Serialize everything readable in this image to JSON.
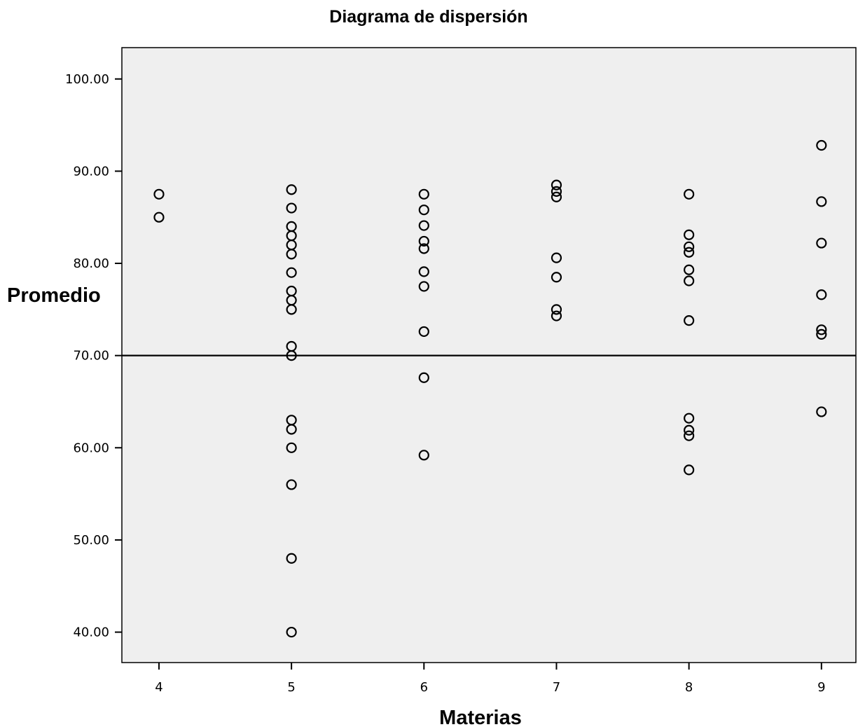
{
  "chart_data": {
    "type": "scatter",
    "title": "Diagrama de dispersión",
    "xlabel": "Materias",
    "ylabel": "Promedio",
    "xlim": [
      3.72,
      9.26
    ],
    "ylim": [
      36.7,
      103.4
    ],
    "x_ticks": [
      4,
      5,
      6,
      7,
      8,
      9
    ],
    "x_tick_labels": [
      "4",
      "5",
      "6",
      "7",
      "8",
      "9"
    ],
    "y_ticks": [
      40,
      50,
      60,
      70,
      80,
      90,
      100
    ],
    "y_tick_labels": [
      "40.00",
      "50.00",
      "60.00",
      "70.00",
      "80.00",
      "90.00",
      "100.00"
    ],
    "reference_line": {
      "orientation": "horizontal",
      "y": 70
    },
    "grid": false,
    "colors": {
      "plot_background": "#efefef",
      "marker": "#000000",
      "reference_line": "#000000"
    },
    "series": [
      {
        "marker": "open-circle",
        "points": [
          {
            "x": 4,
            "y": 87.5
          },
          {
            "x": 4,
            "y": 85.0
          },
          {
            "x": 5,
            "y": 88.0
          },
          {
            "x": 5,
            "y": 86.0
          },
          {
            "x": 5,
            "y": 84.0
          },
          {
            "x": 5,
            "y": 83.0
          },
          {
            "x": 5,
            "y": 82.0
          },
          {
            "x": 5,
            "y": 81.0
          },
          {
            "x": 5,
            "y": 79.0
          },
          {
            "x": 5,
            "y": 77.0
          },
          {
            "x": 5,
            "y": 76.0
          },
          {
            "x": 5,
            "y": 75.0
          },
          {
            "x": 5,
            "y": 71.0
          },
          {
            "x": 5,
            "y": 70.0
          },
          {
            "x": 5,
            "y": 63.0
          },
          {
            "x": 5,
            "y": 62.0
          },
          {
            "x": 5,
            "y": 60.0
          },
          {
            "x": 5,
            "y": 56.0
          },
          {
            "x": 5,
            "y": 48.0
          },
          {
            "x": 5,
            "y": 40.0
          },
          {
            "x": 6,
            "y": 87.5
          },
          {
            "x": 6,
            "y": 85.8
          },
          {
            "x": 6,
            "y": 84.1
          },
          {
            "x": 6,
            "y": 82.4
          },
          {
            "x": 6,
            "y": 81.6
          },
          {
            "x": 6,
            "y": 79.1
          },
          {
            "x": 6,
            "y": 77.5
          },
          {
            "x": 6,
            "y": 72.6
          },
          {
            "x": 6,
            "y": 67.6
          },
          {
            "x": 6,
            "y": 59.2
          },
          {
            "x": 7,
            "y": 88.5
          },
          {
            "x": 7,
            "y": 87.8
          },
          {
            "x": 7,
            "y": 87.2
          },
          {
            "x": 7,
            "y": 80.6
          },
          {
            "x": 7,
            "y": 78.5
          },
          {
            "x": 7,
            "y": 75.0
          },
          {
            "x": 7,
            "y": 74.3
          },
          {
            "x": 8,
            "y": 87.5
          },
          {
            "x": 8,
            "y": 83.1
          },
          {
            "x": 8,
            "y": 81.8
          },
          {
            "x": 8,
            "y": 81.2
          },
          {
            "x": 8,
            "y": 79.3
          },
          {
            "x": 8,
            "y": 78.1
          },
          {
            "x": 8,
            "y": 73.8
          },
          {
            "x": 8,
            "y": 63.2
          },
          {
            "x": 8,
            "y": 61.9
          },
          {
            "x": 8,
            "y": 61.3
          },
          {
            "x": 8,
            "y": 57.6
          },
          {
            "x": 9,
            "y": 92.8
          },
          {
            "x": 9,
            "y": 86.7
          },
          {
            "x": 9,
            "y": 82.2
          },
          {
            "x": 9,
            "y": 76.6
          },
          {
            "x": 9,
            "y": 72.8
          },
          {
            "x": 9,
            "y": 72.3
          },
          {
            "x": 9,
            "y": 63.9
          }
        ]
      }
    ]
  }
}
